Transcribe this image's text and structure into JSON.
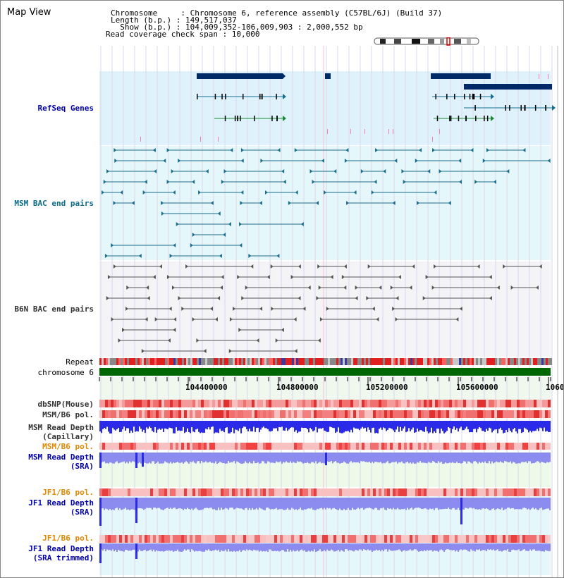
{
  "header": {
    "title": "Map View",
    "lines": [
      "Chromosome     : Chromosome 6, reference assembly (C57BL/6J) (Build 37)",
      "Length (b.p.) : 149,517,037",
      "  Show (b.p.) : 104,009,352-106,009,903 : 2,000,552 bp",
      "Read coverage check span : 10,000"
    ]
  },
  "tracks": {
    "refseq": "RefSeq Genes",
    "msm_bac": "MSM BAC end pairs",
    "b6n_bac": "B6N BAC end pairs",
    "repeat": "Repeat",
    "chromosome": "chromosome 6",
    "dbsnp": "dbSNP(Mouse)",
    "msm_b6_pol_1": "MSM/B6 pol.",
    "msm_read_depth_cap_1": "MSM Read Depth",
    "msm_read_depth_cap_2": "(Capillary)",
    "msm_b6_pol_2": "MSM/B6 pol.",
    "msm_read_depth_sra_1": "MSM Read Depth",
    "msm_read_depth_sra_2": "(SRA)",
    "jf1_b6_pol_1": "JF1/B6 pol.",
    "jf1_read_depth_sra_1": "JF1 Read Depth",
    "jf1_read_depth_sra_2": "(SRA)",
    "jf1_b6_pol_2": "JF1/B6 pol.",
    "jf1_read_depth_trim_1": "JF1 Read Depth",
    "jf1_read_depth_trim_2": "(SRA trimmed)"
  },
  "axis": {
    "ticks": [
      "104400000",
      "104800000",
      "105200000",
      "105600000",
      "1060"
    ]
  },
  "colors": {
    "refseq_bg": "#dff2fb",
    "msm_bg": "#e6f7fb",
    "b6n_bg": "#f4f4f7",
    "navy": "#002a66",
    "teal": "#1a6e8e",
    "gray": "#666666",
    "depth_blue": "#2a2ae8",
    "depth_light": "#8c8cf0",
    "chrom_green": "#006600"
  }
}
